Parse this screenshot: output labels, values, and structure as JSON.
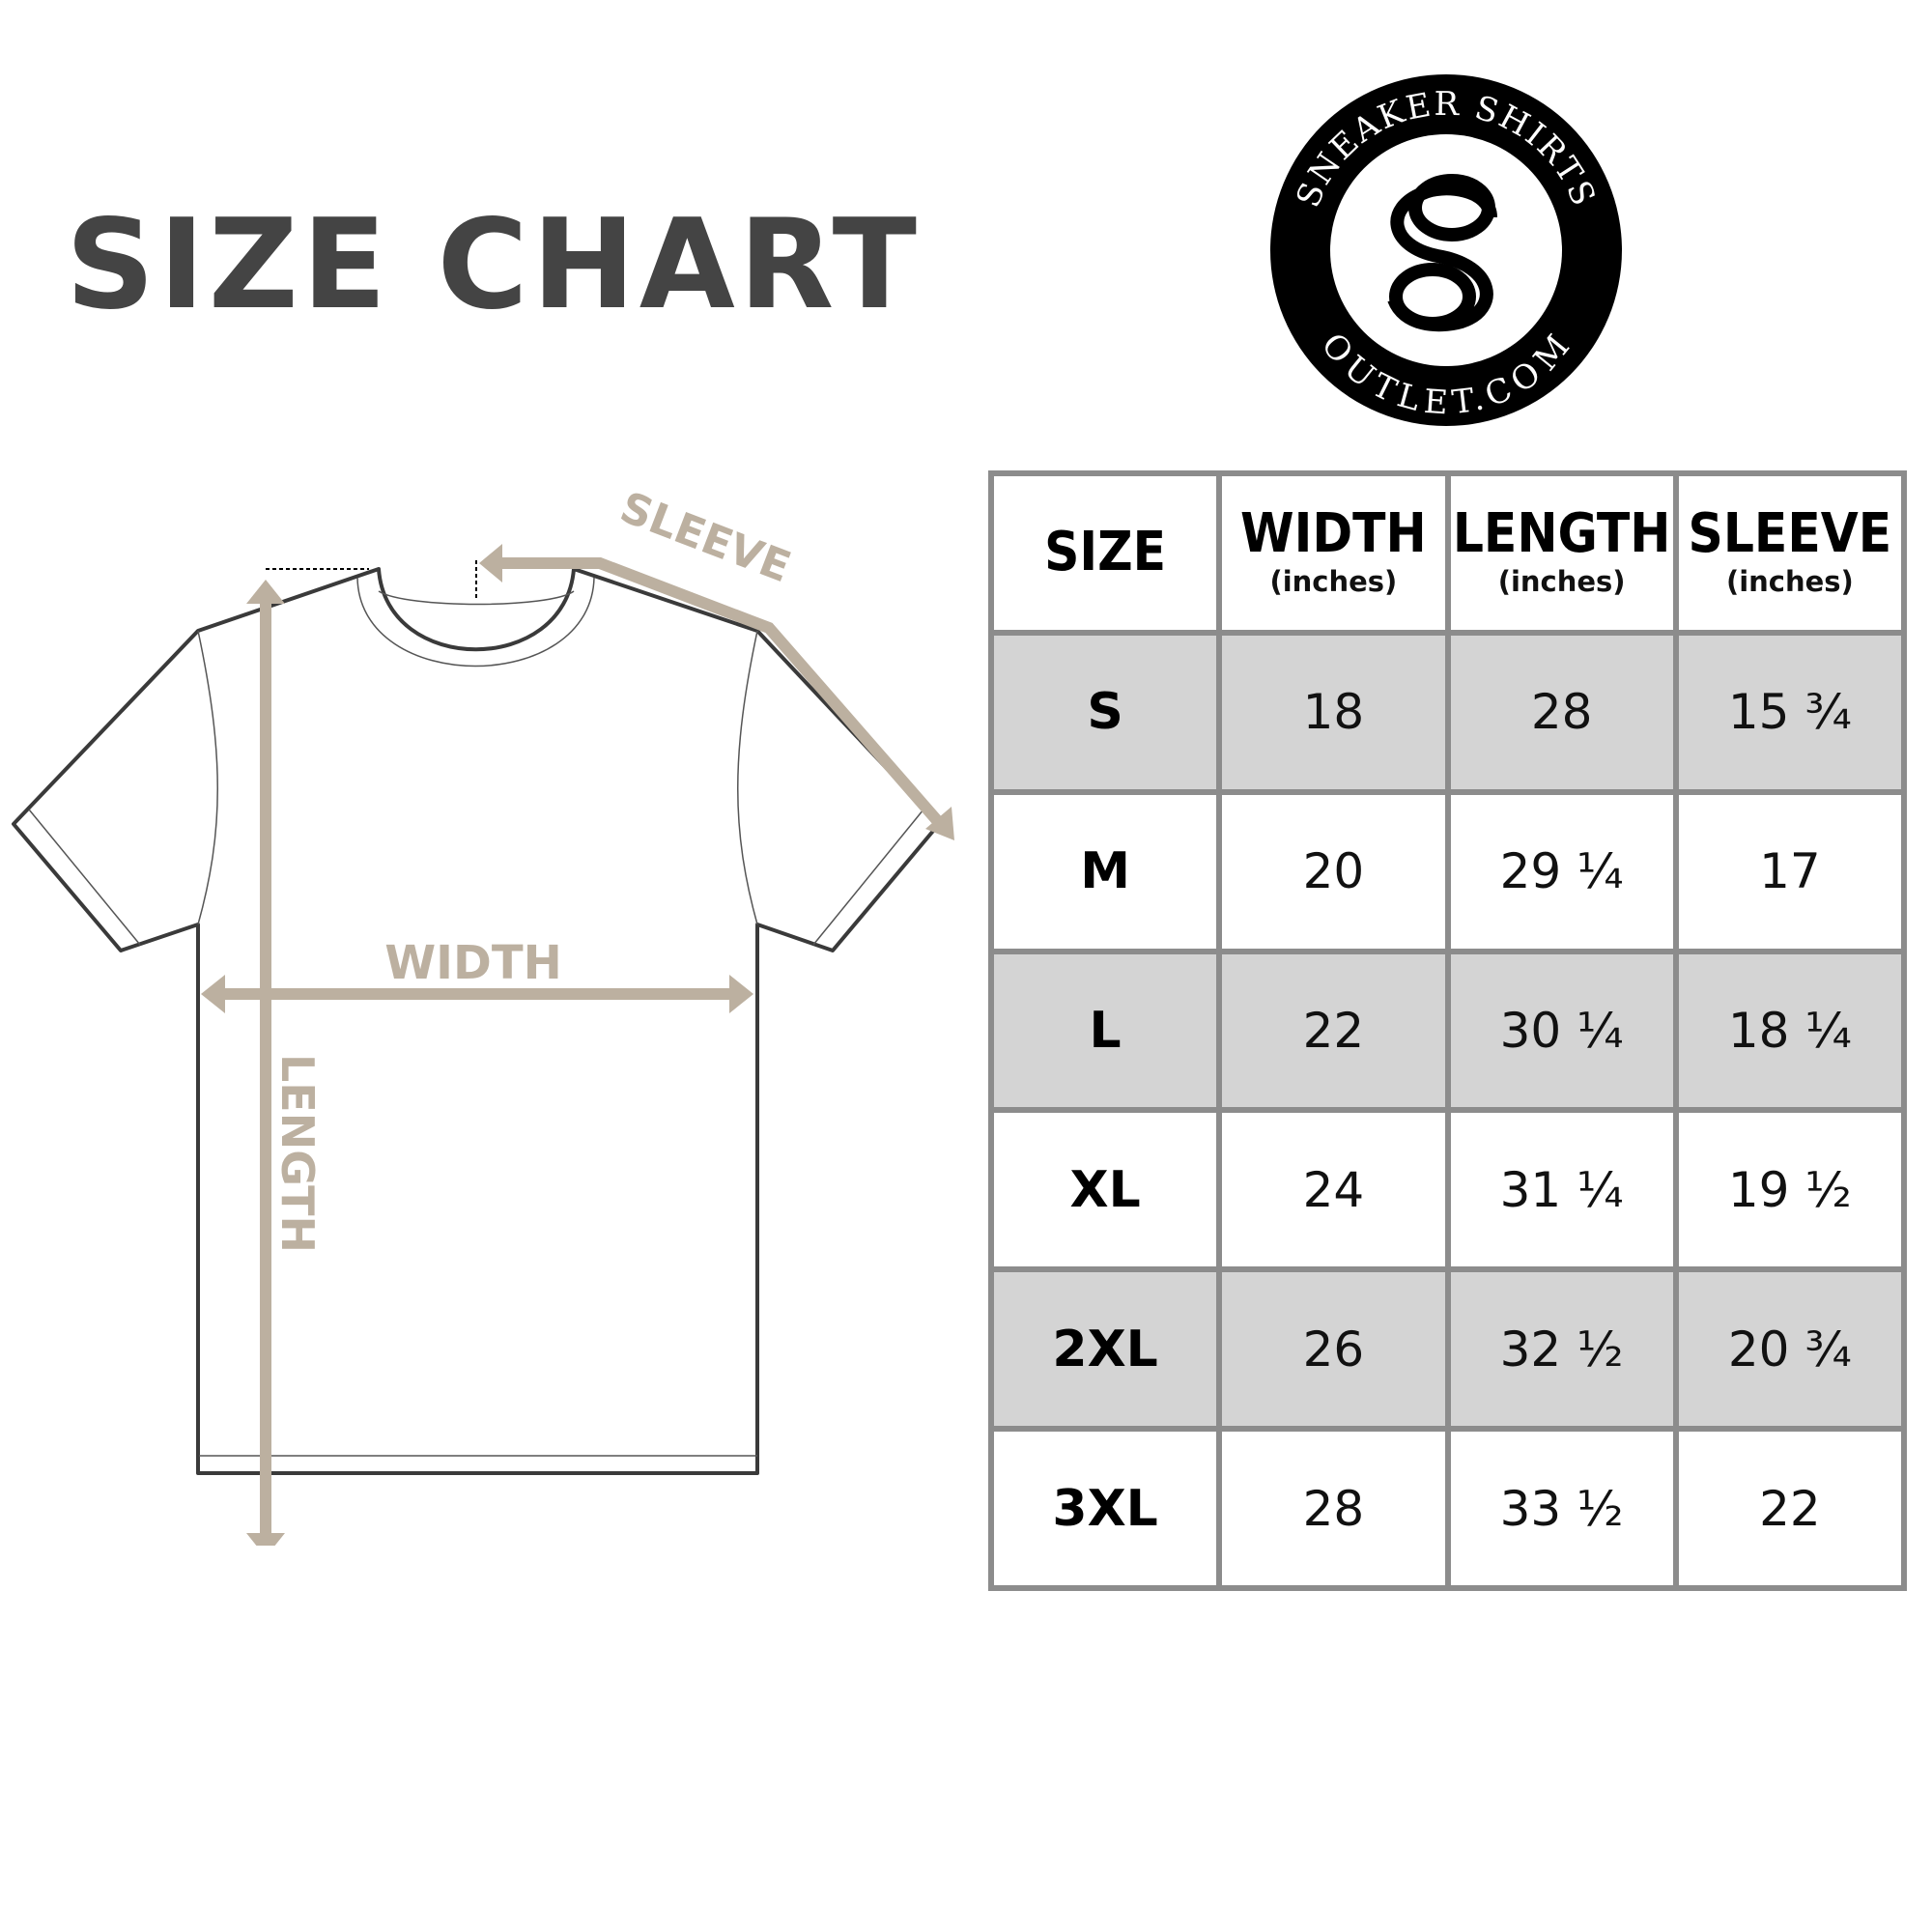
{
  "title": "SIZE CHART",
  "logo": {
    "top_text": "SNEAKER SHIRTS",
    "bottom_text": "OUTLET.COM",
    "monogram": "SO"
  },
  "diagram": {
    "sleeve_label": "SLEEVE",
    "width_label": "WIDTH",
    "length_label": "LENGTH",
    "accent_color": "#bcb0a0",
    "outline_color": "#3a3a3a"
  },
  "table": {
    "headers": [
      {
        "label": "SIZE",
        "unit": ""
      },
      {
        "label": "WIDTH",
        "unit": "(inches)"
      },
      {
        "label": "LENGTH",
        "unit": "(inches)"
      },
      {
        "label": "SLEEVE",
        "unit": "(inches)"
      }
    ],
    "rows": [
      [
        "S",
        "18",
        "28",
        "15 ¾"
      ],
      [
        "M",
        "20",
        "29 ¼",
        "17"
      ],
      [
        "L",
        "22",
        "30 ¼",
        "18 ¼"
      ],
      [
        "XL",
        "24",
        "31 ¼",
        "19 ½"
      ],
      [
        "2XL",
        "26",
        "32 ½",
        "20 ¾"
      ],
      [
        "3XL",
        "28",
        "33 ½",
        "22"
      ]
    ],
    "shade_color": "#d4d4d4"
  }
}
